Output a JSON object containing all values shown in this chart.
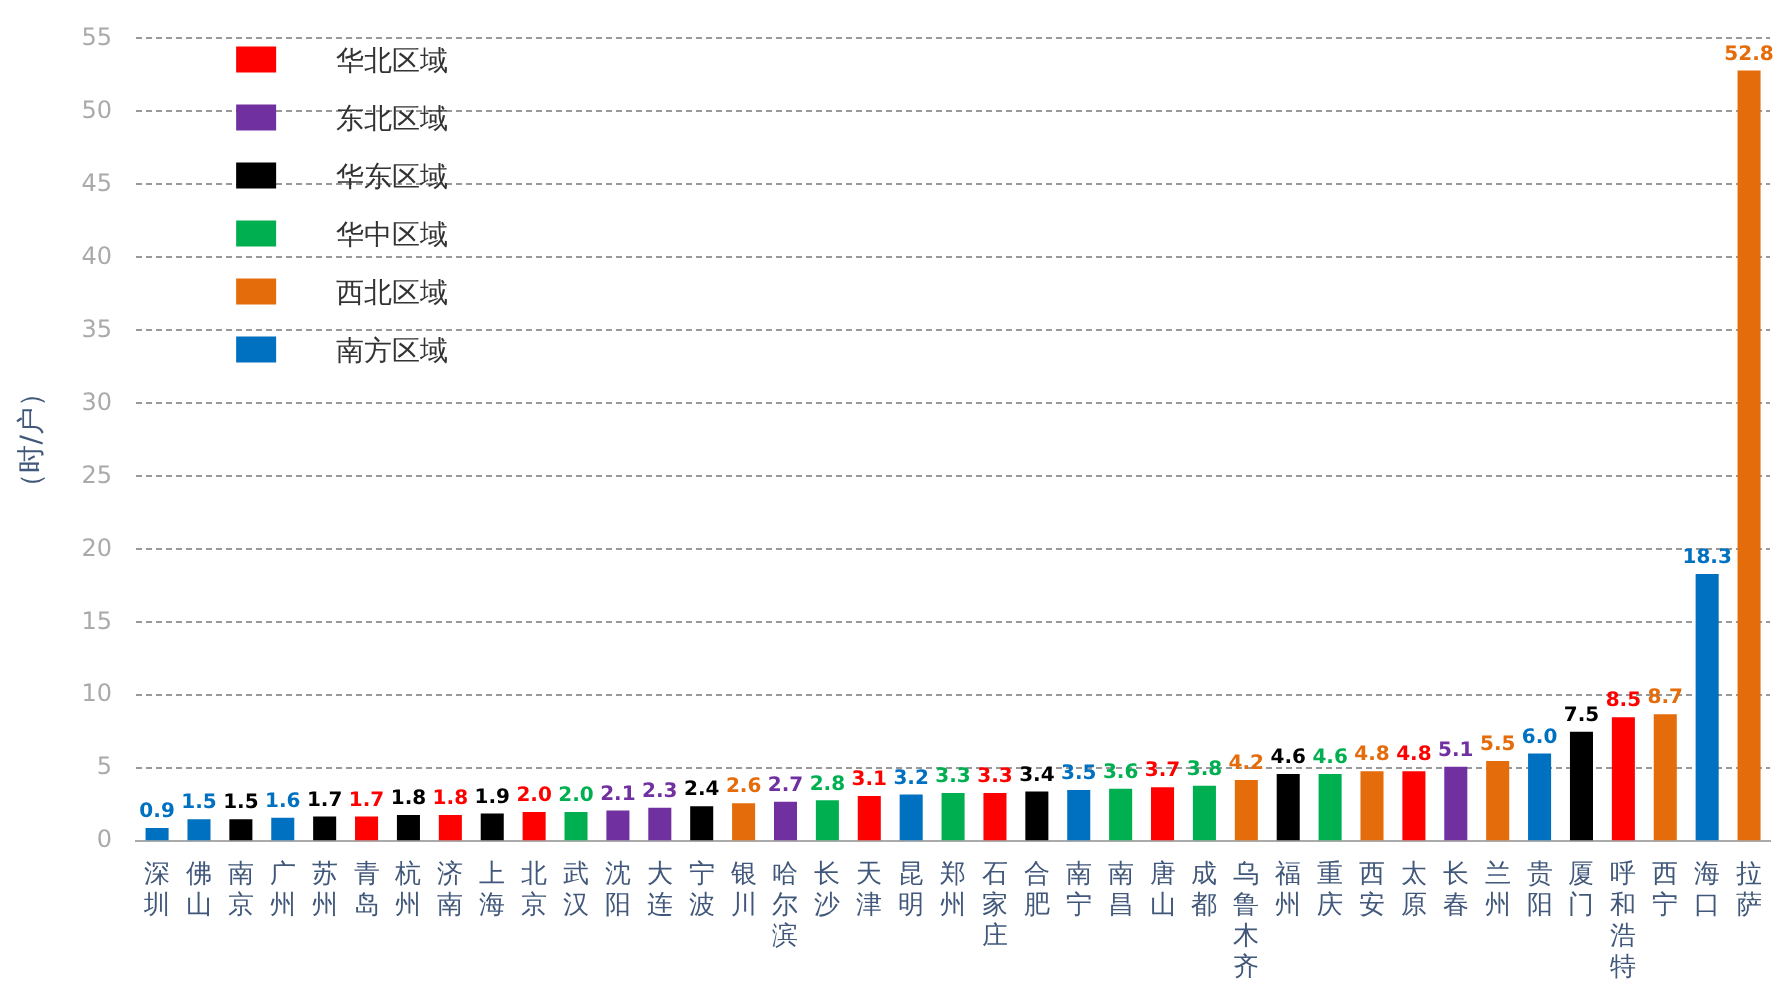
{
  "chart_data": {
    "type": "bar",
    "ylabel": "（时/户）",
    "categories": [
      "深圳",
      "佛山",
      "南京",
      "广州",
      "苏州",
      "青岛",
      "杭州",
      "济南",
      "上海",
      "北京",
      "武汉",
      "沈阳",
      "大连",
      "宁波",
      "银川",
      "哈尔滨",
      "长沙",
      "天津",
      "昆明",
      "郑州",
      "石家庄",
      "合肥",
      "南宁",
      "南昌",
      "唐山",
      "成都",
      "乌鲁木齐",
      "福州",
      "重庆",
      "西安",
      "太原",
      "长春",
      "兰州",
      "贵阳",
      "厦门",
      "呼和浩特",
      "西宁",
      "海口",
      "拉萨"
    ],
    "series": [
      {
        "name": "华北区域",
        "color": "#ff0000",
        "values": [
          null,
          null,
          null,
          null,
          null,
          1.7,
          null,
          1.8,
          null,
          2.0,
          null,
          null,
          null,
          null,
          null,
          null,
          null,
          3.1,
          null,
          null,
          3.3,
          null,
          null,
          null,
          3.7,
          null,
          null,
          null,
          null,
          null,
          4.8,
          null,
          null,
          null,
          null,
          8.5,
          null,
          null,
          null
        ],
        "value_labels": [
          null,
          null,
          null,
          null,
          null,
          "1.7",
          null,
          "1.8",
          null,
          "2.0",
          null,
          null,
          null,
          null,
          null,
          null,
          null,
          "3.1",
          null,
          null,
          "3.3",
          null,
          null,
          null,
          "3.7",
          null,
          null,
          null,
          null,
          null,
          "4.8",
          null,
          null,
          null,
          null,
          "8.5",
          null,
          null,
          null
        ]
      },
      {
        "name": "东北区域",
        "color": "#7030a0",
        "values": [
          null,
          null,
          null,
          null,
          null,
          null,
          null,
          null,
          null,
          null,
          null,
          2.1,
          2.3,
          null,
          null,
          2.7,
          null,
          null,
          null,
          null,
          null,
          null,
          null,
          null,
          null,
          null,
          null,
          null,
          null,
          null,
          null,
          5.1,
          null,
          null,
          null,
          null,
          null,
          null,
          null
        ],
        "value_labels": [
          null,
          null,
          null,
          null,
          null,
          null,
          null,
          null,
          null,
          null,
          null,
          "2.1",
          "2.3",
          null,
          null,
          "2.7",
          null,
          null,
          null,
          null,
          null,
          null,
          null,
          null,
          null,
          null,
          null,
          null,
          null,
          null,
          null,
          "5.1",
          null,
          null,
          null,
          null,
          null,
          null,
          null
        ]
      },
      {
        "name": "华东区域",
        "color": "#000000",
        "values": [
          null,
          null,
          1.5,
          null,
          1.7,
          null,
          1.8,
          null,
          1.9,
          null,
          null,
          null,
          null,
          2.4,
          null,
          null,
          null,
          null,
          null,
          null,
          null,
          3.4,
          null,
          null,
          null,
          null,
          null,
          4.6,
          null,
          null,
          null,
          null,
          null,
          null,
          7.5,
          null,
          null,
          null,
          null
        ],
        "value_labels": [
          null,
          null,
          "1.5",
          null,
          "1.7",
          null,
          "1.8",
          null,
          "1.9",
          null,
          null,
          null,
          null,
          "2.4",
          null,
          null,
          null,
          null,
          null,
          null,
          null,
          "3.4",
          null,
          null,
          null,
          null,
          null,
          "4.6",
          null,
          null,
          null,
          null,
          null,
          null,
          "7.5",
          null,
          null,
          null,
          null
        ]
      },
      {
        "name": "华中区域",
        "color": "#00b050",
        "values": [
          null,
          null,
          null,
          null,
          null,
          null,
          null,
          null,
          null,
          null,
          2.0,
          null,
          null,
          null,
          null,
          null,
          2.8,
          null,
          null,
          3.3,
          null,
          null,
          null,
          3.6,
          null,
          3.8,
          null,
          null,
          4.6,
          null,
          null,
          null,
          null,
          null,
          null,
          null,
          null,
          null,
          null
        ],
        "value_labels": [
          null,
          null,
          null,
          null,
          null,
          null,
          null,
          null,
          null,
          null,
          "2.0",
          null,
          null,
          null,
          null,
          null,
          "2.8",
          null,
          null,
          "3.3",
          null,
          null,
          null,
          "3.6",
          null,
          "3.8",
          null,
          null,
          "4.6",
          null,
          null,
          null,
          null,
          null,
          null,
          null,
          null,
          null,
          null
        ]
      },
      {
        "name": "西北区域",
        "color": "#e46c0a",
        "values": [
          null,
          null,
          null,
          null,
          null,
          null,
          null,
          null,
          null,
          null,
          null,
          null,
          null,
          null,
          2.6,
          null,
          null,
          null,
          null,
          null,
          null,
          null,
          null,
          null,
          null,
          null,
          4.2,
          null,
          null,
          4.8,
          null,
          null,
          5.5,
          null,
          null,
          null,
          8.7,
          null,
          52.8
        ],
        "value_labels": [
          null,
          null,
          null,
          null,
          null,
          null,
          null,
          null,
          null,
          null,
          null,
          null,
          null,
          null,
          "2.6",
          null,
          null,
          null,
          null,
          null,
          null,
          null,
          null,
          null,
          null,
          null,
          "4.2",
          null,
          null,
          "4.8",
          null,
          null,
          "5.5",
          null,
          null,
          null,
          "8.7",
          null,
          "52.8"
        ]
      },
      {
        "name": "南方区域",
        "color": "#0070c0",
        "values": [
          0.9,
          1.5,
          null,
          1.6,
          null,
          null,
          null,
          null,
          null,
          null,
          null,
          null,
          null,
          null,
          null,
          null,
          null,
          null,
          3.2,
          null,
          null,
          null,
          3.5,
          null,
          null,
          null,
          null,
          null,
          null,
          null,
          null,
          null,
          null,
          6.0,
          null,
          null,
          null,
          18.3,
          null
        ],
        "value_labels": [
          "0.9",
          "1.5",
          null,
          "1.6",
          null,
          null,
          null,
          null,
          null,
          null,
          null,
          null,
          null,
          null,
          null,
          null,
          null,
          null,
          "3.2",
          null,
          null,
          null,
          "3.5",
          null,
          null,
          null,
          null,
          null,
          null,
          null,
          null,
          null,
          null,
          "6.0",
          null,
          null,
          null,
          "18.3",
          null
        ]
      }
    ],
    "ylim": [
      0,
      55
    ],
    "yticks": [
      0,
      5,
      10,
      15,
      20,
      25,
      30,
      35,
      40,
      45,
      50,
      55
    ],
    "grid": "y",
    "legend": "top left"
  }
}
